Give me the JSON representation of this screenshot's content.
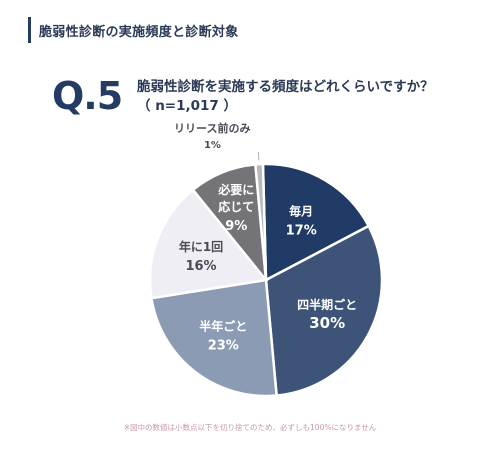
{
  "header": {
    "title": "脆弱性診断の実施頻度と診断対象"
  },
  "question": {
    "number": "Q.5",
    "text": "脆弱性診断を実施する頻度はどれくらいですか？",
    "count": "（ n=1,017 ）"
  },
  "chart_data": {
    "type": "pie",
    "start_angle_deg": -1.5,
    "direction": "clockwise",
    "slices": [
      {
        "label": "毎月",
        "value": 17,
        "value_label": "17%",
        "color": "#1f3b66",
        "text_color": "#ffffff"
      },
      {
        "label": "四半期ごと",
        "value": 30,
        "value_label": "30%",
        "color": "#3d5478",
        "text_color": "#ffffff"
      },
      {
        "label": "半年ごと",
        "value": 23,
        "value_label": "23%",
        "color": "#8c9bb4",
        "text_color": "#ffffff"
      },
      {
        "label": "年に1回",
        "value": 16,
        "value_label": "16%",
        "color": "#eeeef4",
        "text_color": "#4a4a55"
      },
      {
        "label": "必要に応じて",
        "label_lines": [
          "必要に",
          "応じて"
        ],
        "value": 9,
        "value_label": "9%",
        "color": "#747378",
        "text_color": "#ffffff"
      },
      {
        "label": "リリース前のみ",
        "value": 1,
        "value_label": "1%",
        "color": "#b9b9bd",
        "text_color": "#4a4a55",
        "external_label": true
      }
    ]
  },
  "footnote": "※図中の数値は小数点以下を切り捨てのため、必ずしも100%になりません"
}
